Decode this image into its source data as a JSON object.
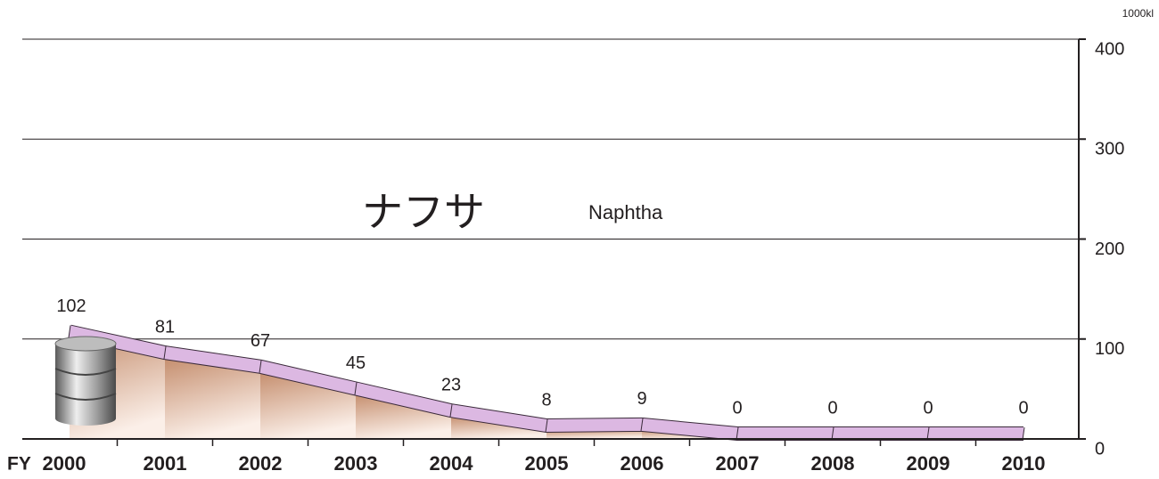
{
  "chart_data": {
    "type": "ribbon",
    "title": "ナフサ",
    "subtitle": "Naphtha",
    "y_label": "1000kl",
    "x_label": "FY",
    "categories": [
      "2000",
      "2001",
      "2002",
      "2003",
      "2004",
      "2005",
      "2006",
      "2007",
      "2008",
      "2009",
      "2010"
    ],
    "values": [
      102,
      81,
      67,
      45,
      23,
      8,
      9,
      0,
      0,
      0,
      0
    ],
    "color": "#dcb8e2",
    "ylim": [
      0,
      400
    ],
    "yticks": [
      0,
      100,
      200,
      300,
      400
    ],
    "grid": true
  }
}
